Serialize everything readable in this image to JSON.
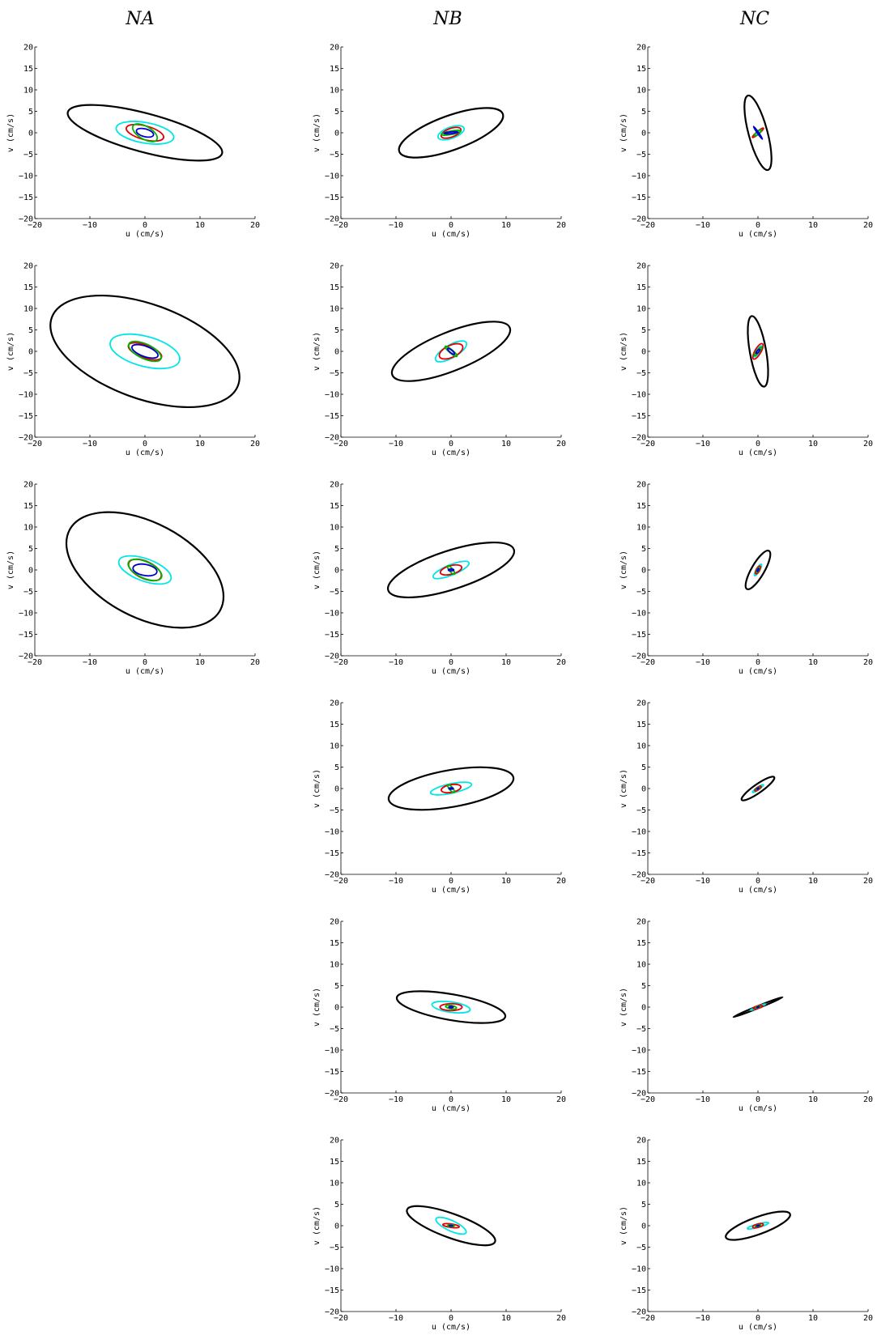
{
  "column_titles": [
    "NA",
    "NB",
    "NC"
  ],
  "colors": {
    "black": "#000000",
    "cyan": "#00e5e5",
    "red": "#e00000",
    "green": "#00b400",
    "blue": "#0000c8"
  },
  "chart_data": [
    {
      "type": "scatter",
      "column": "NA",
      "row": 1,
      "xlabel": "u (cm/s)",
      "ylabel": "v (cm/s)",
      "xlim": [
        -20,
        20
      ],
      "ylim": [
        -20,
        20
      ],
      "xticks": [
        -20,
        -10,
        0,
        10,
        20
      ],
      "yticks": [
        -20,
        -15,
        -10,
        -5,
        0,
        5,
        10,
        15,
        20
      ],
      "ellipses": [
        {
          "color": "black",
          "cx": 0,
          "cy": 0,
          "a": 14.5,
          "b": 4.5,
          "angle": -15
        },
        {
          "color": "cyan",
          "cx": 0,
          "cy": 0,
          "a": 5.3,
          "b": 2.4,
          "angle": -10
        },
        {
          "color": "red",
          "cx": 0,
          "cy": 0,
          "a": 3.5,
          "b": 1.6,
          "angle": -15
        },
        {
          "color": "green",
          "cx": 0,
          "cy": 0,
          "a": 2.5,
          "b": 1.5,
          "angle": -30
        },
        {
          "color": "blue",
          "cx": 0,
          "cy": 0,
          "a": 1.6,
          "b": 0.9,
          "angle": -15
        }
      ]
    },
    {
      "type": "scatter",
      "column": "NB",
      "row": 1,
      "xlabel": "u (cm/s)",
      "ylabel": "v (cm/s)",
      "xlim": [
        -20,
        20
      ],
      "ylim": [
        -20,
        20
      ],
      "xticks": [
        -20,
        -10,
        0,
        10,
        20
      ],
      "yticks": [
        -20,
        -15,
        -10,
        -5,
        0,
        5,
        10,
        15,
        20
      ],
      "ellipses": [
        {
          "color": "black",
          "cx": 0,
          "cy": 0,
          "a": 10,
          "b": 4,
          "angle": 20
        },
        {
          "color": "cyan",
          "cx": 0,
          "cy": 0,
          "a": 2.5,
          "b": 1.3,
          "angle": 20
        },
        {
          "color": "red",
          "cx": 0,
          "cy": 0,
          "a": 1.9,
          "b": 1,
          "angle": 20
        },
        {
          "color": "green",
          "cx": 0,
          "cy": 0,
          "a": 1.8,
          "b": 0.4,
          "angle": 10
        },
        {
          "color": "blue",
          "cx": 0,
          "cy": 0,
          "a": 1.3,
          "b": 0.2,
          "angle": 5
        }
      ]
    },
    {
      "type": "scatter",
      "column": "NC",
      "row": 1,
      "xlabel": "u (cm/s)",
      "ylabel": "v (cm/s)",
      "xlim": [
        -20,
        20
      ],
      "ylim": [
        -20,
        20
      ],
      "xticks": [
        -20,
        -10,
        0,
        10,
        20
      ],
      "yticks": [
        -20,
        -15,
        -10,
        -5,
        0,
        5,
        10,
        15,
        20
      ],
      "ellipses": [
        {
          "color": "black",
          "cx": 0,
          "cy": 0,
          "a": 7,
          "b": 2.2,
          "angle": -75
        },
        {
          "color": "cyan",
          "cx": 0,
          "cy": 0,
          "a": 0.8,
          "b": 0.3,
          "angle": 45
        },
        {
          "color": "red",
          "cx": 0,
          "cy": 0,
          "a": 1.3,
          "b": 0.3,
          "angle": 40
        },
        {
          "color": "green",
          "cx": 0,
          "cy": 0,
          "a": 0.8,
          "b": 0.3,
          "angle": 40
        },
        {
          "color": "blue",
          "cx": 0,
          "cy": 0,
          "a": 1.4,
          "b": 0.15,
          "angle": -55
        }
      ]
    },
    {
      "type": "scatter",
      "column": "NA",
      "row": 2,
      "xlabel": "u (cm/s)",
      "ylabel": "v (cm/s)",
      "xlim": [
        -20,
        20
      ],
      "ylim": [
        -20,
        20
      ],
      "xticks": [
        -20,
        -10,
        0,
        10,
        20
      ],
      "yticks": [
        -20,
        -15,
        -10,
        -5,
        0,
        5,
        10,
        15,
        20
      ],
      "ellipses": [
        {
          "color": "black",
          "cx": 0,
          "cy": 0,
          "a": 18,
          "b": 11,
          "angle": -20
        },
        {
          "color": "cyan",
          "cx": 0,
          "cy": 0,
          "a": 6.5,
          "b": 3.5,
          "angle": -15
        },
        {
          "color": "red",
          "cx": 0,
          "cy": 0,
          "a": 3.2,
          "b": 1.5,
          "angle": -20
        },
        {
          "color": "green",
          "cx": 0,
          "cy": 0,
          "a": 3.2,
          "b": 1.7,
          "angle": -25
        },
        {
          "color": "blue",
          "cx": 0,
          "cy": 0,
          "a": 2.5,
          "b": 1.2,
          "angle": -20
        }
      ]
    },
    {
      "type": "scatter",
      "column": "NB",
      "row": 2,
      "xlabel": "u (cm/s)",
      "ylabel": "v (cm/s)",
      "xlim": [
        -20,
        20
      ],
      "ylim": [
        -20,
        20
      ],
      "xticks": [
        -20,
        -10,
        0,
        10,
        20
      ],
      "yticks": [
        -20,
        -15,
        -10,
        -5,
        0,
        5,
        10,
        15,
        20
      ],
      "ellipses": [
        {
          "color": "black",
          "cx": 0,
          "cy": 0,
          "a": 11.5,
          "b": 4.5,
          "angle": 22
        },
        {
          "color": "cyan",
          "cx": 0,
          "cy": 0,
          "a": 3.2,
          "b": 1.5,
          "angle": 30
        },
        {
          "color": "red",
          "cx": 0,
          "cy": 0,
          "a": 2.3,
          "b": 1.4,
          "angle": 25
        },
        {
          "color": "green",
          "cx": 0,
          "cy": 0,
          "a": 1.4,
          "b": 0.4,
          "angle": -40
        },
        {
          "color": "blue",
          "cx": 0,
          "cy": 0,
          "a": 0.8,
          "b": 0.3,
          "angle": -40
        }
      ]
    },
    {
      "type": "scatter",
      "column": "NC",
      "row": 2,
      "xlabel": "u (cm/s)",
      "ylabel": "v (cm/s)",
      "xlim": [
        -20,
        20
      ],
      "ylim": [
        -20,
        20
      ],
      "xticks": [
        -20,
        -10,
        0,
        10,
        20
      ],
      "yticks": [
        -20,
        -15,
        -10,
        -5,
        0,
        5,
        10,
        15,
        20
      ],
      "ellipses": [
        {
          "color": "black",
          "cx": 0,
          "cy": 0,
          "a": 6.5,
          "b": 1.9,
          "angle": -80
        },
        {
          "color": "cyan",
          "cx": 0,
          "cy": 0,
          "a": 1.2,
          "b": 0.4,
          "angle": 55
        },
        {
          "color": "red",
          "cx": 0,
          "cy": 0,
          "a": 1.6,
          "b": 0.7,
          "angle": 60
        },
        {
          "color": "green",
          "cx": 0,
          "cy": 0,
          "a": 1,
          "b": 0.3,
          "angle": 50
        },
        {
          "color": "blue",
          "cx": 0,
          "cy": 0,
          "a": 0.5,
          "b": 0.2,
          "angle": 50
        }
      ]
    },
    {
      "type": "scatter",
      "column": "NA",
      "row": 3,
      "xlabel": "u (cm/s)",
      "ylabel": "v (cm/s)",
      "xlim": [
        -20,
        20
      ],
      "ylim": [
        -20,
        20
      ],
      "xticks": [
        -20,
        -10,
        0,
        10,
        20
      ],
      "yticks": [
        -20,
        -15,
        -10,
        -5,
        0,
        5,
        10,
        15,
        20
      ],
      "ellipses": [
        {
          "color": "black",
          "cx": 0,
          "cy": 0,
          "a": 15.5,
          "b": 11,
          "angle": -28
        },
        {
          "color": "cyan",
          "cx": 0,
          "cy": 0,
          "a": 5,
          "b": 2.6,
          "angle": -20
        },
        {
          "color": "red",
          "cx": 0,
          "cy": 0,
          "a": 3.2,
          "b": 2,
          "angle": -25
        },
        {
          "color": "green",
          "cx": 0,
          "cy": 0,
          "a": 3.3,
          "b": 1.9,
          "angle": -25
        },
        {
          "color": "blue",
          "cx": 0,
          "cy": 0,
          "a": 2.2,
          "b": 1.3,
          "angle": -10
        }
      ]
    },
    {
      "type": "scatter",
      "column": "NB",
      "row": 3,
      "xlabel": "u (cm/s)",
      "ylabel": "v (cm/s)",
      "xlim": [
        -20,
        20
      ],
      "ylim": [
        -20,
        20
      ],
      "xticks": [
        -20,
        -10,
        0,
        10,
        20
      ],
      "yticks": [
        -20,
        -15,
        -10,
        -5,
        0,
        5,
        10,
        15,
        20
      ],
      "ellipses": [
        {
          "color": "black",
          "cx": 0,
          "cy": 0,
          "a": 12,
          "b": 4.5,
          "angle": 18
        },
        {
          "color": "cyan",
          "cx": 0,
          "cy": 0,
          "a": 3.5,
          "b": 1.2,
          "angle": 22
        },
        {
          "color": "red",
          "cx": 0,
          "cy": 0,
          "a": 2,
          "b": 1,
          "angle": 15
        },
        {
          "color": "green",
          "cx": 0,
          "cy": 0,
          "a": 1,
          "b": 0.4,
          "angle": -50
        },
        {
          "color": "blue",
          "cx": 0,
          "cy": 0,
          "a": 0.5,
          "b": 0.2,
          "angle": 0
        }
      ]
    },
    {
      "type": "scatter",
      "column": "NC",
      "row": 3,
      "xlabel": "u (cm/s)",
      "ylabel": "v (cm/s)",
      "xlim": [
        -20,
        20
      ],
      "ylim": [
        -20,
        20
      ],
      "xticks": [
        -20,
        -10,
        0,
        10,
        20
      ],
      "yticks": [
        -20,
        -15,
        -10,
        -5,
        0,
        5,
        10,
        15,
        20
      ],
      "ellipses": [
        {
          "color": "black",
          "cx": 0,
          "cy": 0,
          "a": 4,
          "b": 1.5,
          "angle": 60
        },
        {
          "color": "cyan",
          "cx": 0,
          "cy": 0,
          "a": 1.2,
          "b": 0.4,
          "angle": 60
        },
        {
          "color": "red",
          "cx": 0,
          "cy": 0,
          "a": 0.8,
          "b": 0.4,
          "angle": 60
        },
        {
          "color": "green",
          "cx": 0,
          "cy": 0,
          "a": 0.5,
          "b": 0.2,
          "angle": 60
        },
        {
          "color": "blue",
          "cx": 0,
          "cy": 0,
          "a": 0.3,
          "b": 0.1,
          "angle": 60
        }
      ]
    },
    {
      "type": "scatter",
      "column": "NB",
      "row": 4,
      "xlabel": "u (cm/s)",
      "ylabel": "v (cm/s)",
      "xlim": [
        -20,
        20
      ],
      "ylim": [
        -20,
        20
      ],
      "xticks": [
        -20,
        -10,
        0,
        10,
        20
      ],
      "yticks": [
        -20,
        -15,
        -10,
        -5,
        0,
        5,
        10,
        15,
        20
      ],
      "ellipses": [
        {
          "color": "black",
          "cx": 0,
          "cy": 0,
          "a": 11.5,
          "b": 4.3,
          "angle": 10
        },
        {
          "color": "cyan",
          "cx": 0,
          "cy": 0,
          "a": 3.8,
          "b": 1.1,
          "angle": 12
        },
        {
          "color": "red",
          "cx": 0,
          "cy": 0,
          "a": 1.8,
          "b": 0.9,
          "angle": 10
        },
        {
          "color": "green",
          "cx": 0,
          "cy": 0,
          "a": 0.9,
          "b": 0.4,
          "angle": -50
        },
        {
          "color": "blue",
          "cx": 0,
          "cy": 0,
          "a": 0.4,
          "b": 0.15,
          "angle": 0
        }
      ]
    },
    {
      "type": "scatter",
      "column": "NC",
      "row": 4,
      "xlabel": "u (cm/s)",
      "ylabel": "v (cm/s)",
      "xlim": [
        -20,
        20
      ],
      "ylim": [
        -20,
        20
      ],
      "xticks": [
        -20,
        -10,
        0,
        10,
        20
      ],
      "yticks": [
        -20,
        -15,
        -10,
        -5,
        0,
        5,
        10,
        15,
        20
      ],
      "ellipses": [
        {
          "color": "black",
          "cx": 0,
          "cy": 0,
          "a": 3.6,
          "b": 1,
          "angle": 35
        },
        {
          "color": "cyan",
          "cx": 0,
          "cy": 0,
          "a": 1.2,
          "b": 0.3,
          "angle": 35
        },
        {
          "color": "red",
          "cx": 0,
          "cy": 0,
          "a": 0.7,
          "b": 0.3,
          "angle": 35
        },
        {
          "color": "green",
          "cx": 0,
          "cy": 0,
          "a": 0.4,
          "b": 0.15,
          "angle": 35
        },
        {
          "color": "blue",
          "cx": 0,
          "cy": 0,
          "a": 0.2,
          "b": 0.08,
          "angle": 35
        }
      ]
    },
    {
      "type": "scatter",
      "column": "NB",
      "row": 5,
      "xlabel": "u (cm/s)",
      "ylabel": "v (cm/s)",
      "xlim": [
        -20,
        20
      ],
      "ylim": [
        -20,
        20
      ],
      "xticks": [
        -20,
        -10,
        0,
        10,
        20
      ],
      "yticks": [
        -20,
        -15,
        -10,
        -5,
        0,
        5,
        10,
        15,
        20
      ],
      "ellipses": [
        {
          "color": "black",
          "cx": 0,
          "cy": 0,
          "a": 10,
          "b": 3,
          "angle": -10
        },
        {
          "color": "cyan",
          "cx": 0,
          "cy": 0,
          "a": 3.5,
          "b": 1.2,
          "angle": -8
        },
        {
          "color": "red",
          "cx": 0,
          "cy": 0,
          "a": 2,
          "b": 0.8,
          "angle": 0
        },
        {
          "color": "green",
          "cx": 0,
          "cy": 0,
          "a": 1,
          "b": 0.4,
          "angle": -10
        },
        {
          "color": "blue",
          "cx": 0,
          "cy": 0,
          "a": 0.4,
          "b": 0.15,
          "angle": 0
        }
      ]
    },
    {
      "type": "scatter",
      "column": "NC",
      "row": 5,
      "xlabel": "u (cm/s)",
      "ylabel": "v (cm/s)",
      "xlim": [
        -20,
        20
      ],
      "ylim": [
        -20,
        20
      ],
      "xticks": [
        -20,
        -10,
        0,
        10,
        20
      ],
      "yticks": [
        -20,
        -15,
        -10,
        -5,
        0,
        5,
        10,
        15,
        20
      ],
      "ellipses": [
        {
          "color": "black",
          "cx": 0,
          "cy": 0,
          "a": 4.8,
          "b": 0.25,
          "angle": 22
        },
        {
          "color": "cyan",
          "cx": 0,
          "cy": 0,
          "a": 1.5,
          "b": 0.2,
          "angle": 22
        },
        {
          "color": "red",
          "cx": 0,
          "cy": 0,
          "a": 0.9,
          "b": 0.3,
          "angle": 15
        },
        {
          "color": "green",
          "cx": 0,
          "cy": 0,
          "a": 0.4,
          "b": 0.12,
          "angle": 20
        },
        {
          "color": "blue",
          "cx": 0,
          "cy": 0,
          "a": 0.2,
          "b": 0.06,
          "angle": 20
        }
      ]
    },
    {
      "type": "scatter",
      "column": "NB",
      "row": 6,
      "xlabel": "u (cm/s)",
      "ylabel": "v (cm/s)",
      "xlim": [
        -20,
        20
      ],
      "ylim": [
        -20,
        20
      ],
      "xticks": [
        -20,
        -10,
        0,
        10,
        20
      ],
      "yticks": [
        -20,
        -15,
        -10,
        -5,
        0,
        5,
        10,
        15,
        20
      ],
      "ellipses": [
        {
          "color": "black",
          "cx": 0,
          "cy": 0,
          "a": 8.5,
          "b": 2.8,
          "angle": -20
        },
        {
          "color": "cyan",
          "cx": 0,
          "cy": 0,
          "a": 3,
          "b": 1.2,
          "angle": -25
        },
        {
          "color": "red",
          "cx": 0,
          "cy": 0,
          "a": 1.5,
          "b": 0.4,
          "angle": -8
        },
        {
          "color": "green",
          "cx": 0,
          "cy": 0,
          "a": 0.6,
          "b": 0.2,
          "angle": 0
        },
        {
          "color": "blue",
          "cx": 0,
          "cy": 0,
          "a": 0.3,
          "b": 0.1,
          "angle": 0
        }
      ]
    },
    {
      "type": "scatter",
      "column": "NC",
      "row": 6,
      "xlabel": "u (cm/s)",
      "ylabel": "v (cm/s)",
      "xlim": [
        -20,
        20
      ],
      "ylim": [
        -20,
        20
      ],
      "xticks": [
        -20,
        -10,
        0,
        10,
        20
      ],
      "yticks": [
        -20,
        -15,
        -10,
        -5,
        0,
        5,
        10,
        15,
        20
      ],
      "ellipses": [
        {
          "color": "black",
          "cx": 0,
          "cy": 0,
          "a": 6.2,
          "b": 2,
          "angle": 20
        },
        {
          "color": "cyan",
          "cx": 0,
          "cy": 0,
          "a": 2,
          "b": 0.4,
          "angle": 15
        },
        {
          "color": "red",
          "cx": 0,
          "cy": 0,
          "a": 1,
          "b": 0.4,
          "angle": 15
        },
        {
          "color": "green",
          "cx": 0,
          "cy": 0,
          "a": 0.5,
          "b": 0.15,
          "angle": 15
        },
        {
          "color": "blue",
          "cx": 0,
          "cy": 0,
          "a": 0.25,
          "b": 0.08,
          "angle": 15
        }
      ]
    }
  ]
}
